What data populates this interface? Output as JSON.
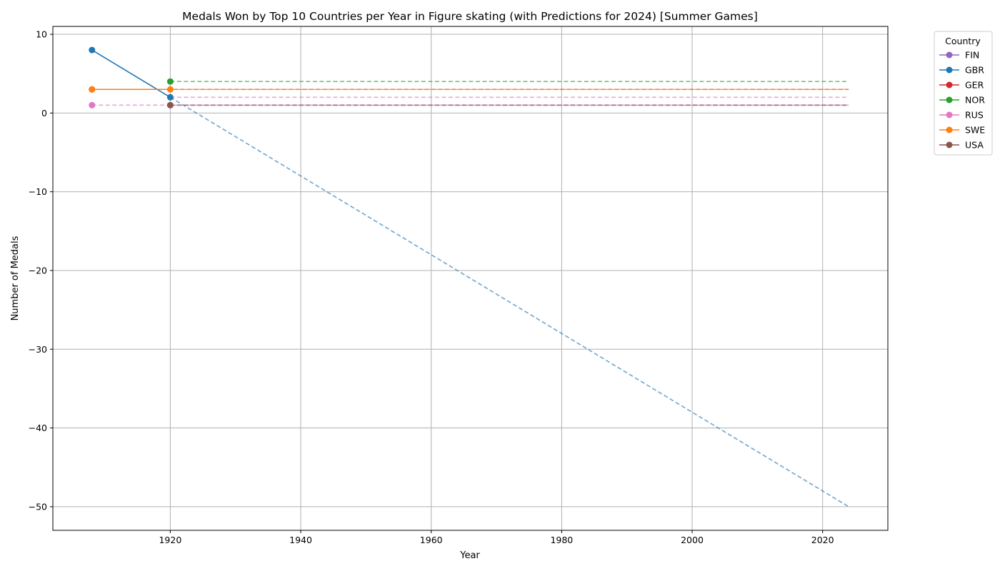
{
  "chart_data": {
    "type": "line",
    "title": "Medals Won by Top 10 Countries per Year in Figure skating (with Predictions for 2024) [Summer Games]",
    "xlabel": "Year",
    "ylabel": "Number of Medals",
    "xlim": [
      1902,
      2030
    ],
    "ylim": [
      -53,
      11
    ],
    "xticks": [
      1920,
      1940,
      1960,
      1980,
      2000,
      2020
    ],
    "yticks": [
      10,
      0,
      -10,
      -20,
      -30,
      -40,
      -50
    ],
    "ytick_labels": [
      "10",
      "0",
      "−10",
      "−20",
      "−30",
      "−40",
      "−50"
    ],
    "grid": true,
    "legend": {
      "title": "Country",
      "placement": "outside-top-right"
    },
    "series": [
      {
        "name": "FIN",
        "color": "#9467bd",
        "points": [
          [
            1920,
            1
          ]
        ],
        "prediction": [
          [
            1920,
            1
          ],
          [
            2024,
            1
          ]
        ]
      },
      {
        "name": "GBR",
        "color": "#1f77b4",
        "points": [
          [
            1908,
            8
          ],
          [
            1920,
            2
          ]
        ],
        "prediction": [
          [
            1920,
            2
          ],
          [
            2024,
            -50
          ]
        ]
      },
      {
        "name": "GER",
        "color": "#d62728",
        "points": [
          [
            1908,
            3
          ]
        ],
        "prediction": [
          [
            1908,
            3
          ],
          [
            2024,
            3
          ]
        ]
      },
      {
        "name": "NOR",
        "color": "#2ca02c",
        "points": [
          [
            1920,
            4
          ]
        ],
        "prediction": [
          [
            1920,
            4
          ],
          [
            2024,
            4
          ]
        ]
      },
      {
        "name": "RUS",
        "color": "#e377c2",
        "points": [
          [
            1908,
            1
          ]
        ],
        "prediction": [
          [
            1908,
            1
          ],
          [
            2024,
            1
          ]
        ]
      },
      {
        "name": "SWE",
        "color": "#ff7f0e",
        "points": [
          [
            1908,
            3
          ],
          [
            1920,
            3
          ]
        ],
        "prediction": [
          [
            1920,
            3
          ],
          [
            2024,
            3
          ]
        ]
      },
      {
        "name": "USA",
        "color": "#8c564b",
        "points": [
          [
            1920,
            1
          ]
        ],
        "prediction": [
          [
            1920,
            1
          ],
          [
            2024,
            1
          ]
        ]
      }
    ],
    "extra_prediction_lines": [
      {
        "color": "#e377c2",
        "line": [
          [
            1920,
            2
          ],
          [
            2024,
            2
          ]
        ]
      }
    ]
  }
}
